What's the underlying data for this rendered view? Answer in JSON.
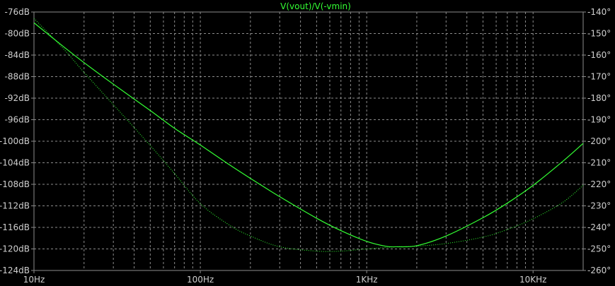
{
  "chart_data": {
    "type": "line",
    "title": "V(vout)/V(-vmin)",
    "x_scale": "log",
    "xlim": [
      10,
      20000
    ],
    "x_ticks": [
      {
        "value": 10,
        "label": "10Hz"
      },
      {
        "value": 100,
        "label": "100Hz"
      },
      {
        "value": 1000,
        "label": "1KHz"
      },
      {
        "value": 10000,
        "label": "10KHz"
      }
    ],
    "y_left": {
      "lim": [
        -124,
        -76
      ],
      "ticks": [
        {
          "value": -76,
          "label": "-76dB"
        },
        {
          "value": -80,
          "label": "-80dB"
        },
        {
          "value": -84,
          "label": "-84dB"
        },
        {
          "value": -88,
          "label": "-88dB"
        },
        {
          "value": -92,
          "label": "-92dB"
        },
        {
          "value": -96,
          "label": "-96dB"
        },
        {
          "value": -100,
          "label": "-100dB"
        },
        {
          "value": -104,
          "label": "-104dB"
        },
        {
          "value": -108,
          "label": "-108dB"
        },
        {
          "value": -112,
          "label": "-112dB"
        },
        {
          "value": -116,
          "label": "-116dB"
        },
        {
          "value": -120,
          "label": "-120dB"
        },
        {
          "value": -124,
          "label": "-124dB"
        }
      ]
    },
    "y_right": {
      "lim": [
        -260,
        -140
      ],
      "ticks": [
        {
          "value": -140,
          "label": "-140°"
        },
        {
          "value": -150,
          "label": "-150°"
        },
        {
          "value": -160,
          "label": "-160°"
        },
        {
          "value": -170,
          "label": "-170°"
        },
        {
          "value": -180,
          "label": "-180°"
        },
        {
          "value": -190,
          "label": "-190°"
        },
        {
          "value": -200,
          "label": "-200°"
        },
        {
          "value": -210,
          "label": "-210°"
        },
        {
          "value": -220,
          "label": "-220°"
        },
        {
          "value": -230,
          "label": "-230°"
        },
        {
          "value": -240,
          "label": "-240°"
        },
        {
          "value": -250,
          "label": "-250°"
        },
        {
          "value": -260,
          "label": "-260°"
        }
      ]
    },
    "grid": true,
    "series": [
      {
        "axis": "left",
        "style": "solid",
        "x": [
          10,
          15,
          20,
          30,
          50,
          70,
          100,
          150,
          200,
          300,
          500,
          700,
          1000,
          1300,
          1500,
          2000,
          3000,
          5000,
          7000,
          10000,
          15000,
          20000
        ],
        "values": [
          -78,
          -82.4,
          -85.4,
          -89.4,
          -94.3,
          -97.6,
          -100.7,
          -104.4,
          -106.9,
          -110.3,
          -114.3,
          -116.6,
          -118.6,
          -119.5,
          -119.6,
          -119.4,
          -117.6,
          -114.2,
          -111.5,
          -108.2,
          -103.8,
          -100.4
        ]
      },
      {
        "axis": "right",
        "style": "dotted",
        "x": [
          10,
          15,
          20,
          30,
          50,
          70,
          100,
          150,
          200,
          300,
          500,
          700,
          1000,
          1500,
          2000,
          3000,
          5000,
          7000,
          10000,
          15000,
          20000
        ],
        "values": [
          -143,
          -157,
          -168,
          -183,
          -202,
          -215,
          -229,
          -239,
          -244,
          -249,
          -251,
          -251,
          -250,
          -249,
          -248.7,
          -247.5,
          -244.5,
          -241,
          -236,
          -228.5,
          -220.5
        ]
      }
    ],
    "colors": {
      "background": "#000000",
      "grid": "#8c8c8c",
      "axis_text": "#cfcfcf",
      "title": "#33ff33",
      "trace": "#33ff33"
    }
  }
}
